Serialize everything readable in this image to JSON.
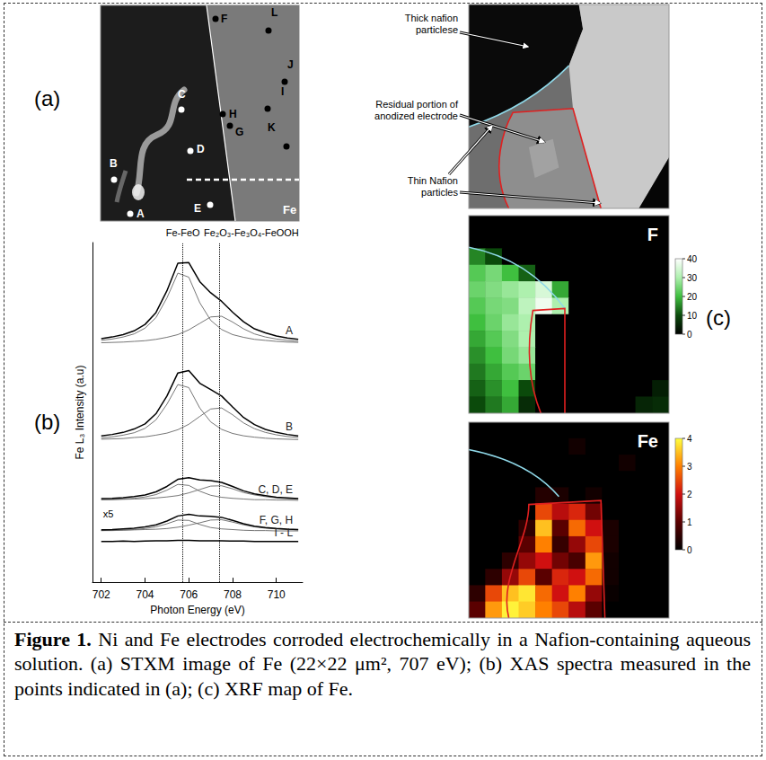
{
  "chart_data": {
    "type": "line",
    "x_label": "Photon Energy (eV)",
    "y_label": "Fe L₃ Intensity (a.u)",
    "x": [
      702,
      702.5,
      703,
      703.5,
      704,
      704.5,
      705,
      705.5,
      706,
      706.5,
      707,
      707.5,
      708,
      708.5,
      709,
      709.5,
      710,
      710.5,
      711
    ],
    "xlim": [
      701.6,
      711.2
    ],
    "xticks": [
      702,
      704,
      706,
      708,
      710
    ],
    "ylim": [
      0,
      10
    ],
    "tick_labels": "x",
    "grid": false,
    "series": [
      {
        "name": "A",
        "color": "#000000",
        "values": [
          7.17,
          7.22,
          7.29,
          7.4,
          7.59,
          7.94,
          8.58,
          9.39,
          9.41,
          8.85,
          8.52,
          8.27,
          7.95,
          7.67,
          7.46,
          7.34,
          7.25,
          7.19,
          7.15
        ],
        "components": [
          [
            7.12,
            7.16,
            7.22,
            7.31,
            7.48,
            7.79,
            8.37,
            9.1,
            8.98,
            8.23,
            7.71,
            7.44,
            7.29,
            7.21,
            7.15,
            7.12,
            7.09,
            7.07,
            7.06
          ],
          [
            7.05,
            7.06,
            7.07,
            7.09,
            7.11,
            7.15,
            7.21,
            7.29,
            7.43,
            7.62,
            7.81,
            7.83,
            7.66,
            7.46,
            7.31,
            7.22,
            7.16,
            7.12,
            7.09
          ]
        ]
      },
      {
        "name": "B",
        "color": "#000000",
        "values": [
          4.31,
          4.35,
          4.41,
          4.51,
          4.66,
          4.96,
          5.48,
          6.16,
          6.23,
          5.86,
          5.67,
          5.48,
          5.16,
          4.85,
          4.64,
          4.5,
          4.41,
          4.35,
          4.31
        ],
        "components": [
          [
            4.25,
            4.28,
            4.33,
            4.4,
            4.53,
            4.78,
            5.24,
            5.82,
            5.73,
            5.13,
            4.72,
            4.5,
            4.38,
            4.31,
            4.27,
            4.24,
            4.22,
            4.21,
            4.2
          ],
          [
            4.21,
            4.22,
            4.23,
            4.26,
            4.28,
            4.33,
            4.39,
            4.49,
            4.65,
            4.88,
            5.1,
            5.13,
            4.93,
            4.69,
            4.52,
            4.41,
            4.34,
            4.29,
            4.26
          ]
        ]
      },
      {
        "name": "C, D, E",
        "color": "#000000",
        "values": [
          2.46,
          2.47,
          2.49,
          2.52,
          2.57,
          2.66,
          2.82,
          3.03,
          3.08,
          3.01,
          2.99,
          2.94,
          2.82,
          2.69,
          2.6,
          2.55,
          2.5,
          2.48,
          2.46
        ],
        "components": [
          [
            2.43,
            2.44,
            2.45,
            2.47,
            2.51,
            2.58,
            2.71,
            2.88,
            2.85,
            2.68,
            2.56,
            2.5,
            2.47,
            2.45,
            2.43,
            2.43,
            2.42,
            2.42,
            2.41
          ],
          [
            2.43,
            2.43,
            2.44,
            2.45,
            2.46,
            2.48,
            2.51,
            2.55,
            2.63,
            2.73,
            2.83,
            2.84,
            2.75,
            2.64,
            2.57,
            2.52,
            2.48,
            2.46,
            2.45
          ]
        ]
      },
      {
        "name": "F, G, H",
        "color": "#000000",
        "note": "x5",
        "values": [
          1.54,
          1.55,
          1.57,
          1.59,
          1.63,
          1.69,
          1.8,
          1.95,
          2.0,
          1.95,
          1.94,
          1.91,
          1.82,
          1.72,
          1.65,
          1.61,
          1.58,
          1.56,
          1.55
        ],
        "components": [
          [
            1.52,
            1.53,
            1.54,
            1.55,
            1.58,
            1.63,
            1.72,
            1.83,
            1.82,
            1.7,
            1.61,
            1.57,
            1.55,
            1.53,
            1.52,
            1.52,
            1.51,
            1.51,
            1.51
          ],
          [
            1.52,
            1.52,
            1.53,
            1.54,
            1.55,
            1.56,
            1.58,
            1.62,
            1.68,
            1.75,
            1.83,
            1.84,
            1.77,
            1.69,
            1.63,
            1.59,
            1.57,
            1.55,
            1.54
          ]
        ]
      },
      {
        "name": "I - L",
        "color": "#000000",
        "values": [
          1.2,
          1.2,
          1.21,
          1.2,
          1.21,
          1.22,
          1.22,
          1.23,
          1.23,
          1.22,
          1.22,
          1.22,
          1.21,
          1.21,
          1.2,
          1.2,
          1.2,
          1.2,
          1.2
        ]
      }
    ],
    "reference_lines": [
      {
        "x": 705.7,
        "label": "Fe-FeO"
      },
      {
        "x": 707.4,
        "label": "Fe₂O₃-Fe₃O₄-FeOOH"
      }
    ]
  },
  "panels": {
    "a": {
      "letter": "(a)",
      "points": [
        "A",
        "B",
        "C",
        "D",
        "E",
        "F",
        "G",
        "H",
        "I",
        "J",
        "K",
        "L"
      ],
      "element_label": "Fe"
    },
    "b": {
      "letter": "(b)"
    },
    "c": {
      "letter": "(c)",
      "annotations": [
        "Thick nafion particlese",
        "Residual portion of anodized electrode",
        "Thin Nafion particles"
      ],
      "maps": [
        {
          "label": "F",
          "colorbar": {
            "range": [
              0,
              40
            ],
            "ticks": [
              0,
              10,
              20,
              30,
              40
            ]
          },
          "cells": [
            [
              0,
              0,
              0,
              0,
              0,
              0,
              0,
              0,
              0,
              0,
              0,
              0
            ],
            [
              0,
              0,
              0,
              0,
              0,
              0,
              0,
              0,
              0,
              0,
              0,
              0
            ],
            [
              15,
              10,
              0,
              0,
              0,
              0,
              0,
              0,
              0,
              0,
              0,
              0
            ],
            [
              22,
              25,
              20,
              12,
              0,
              0,
              0,
              0,
              0,
              0,
              0,
              0
            ],
            [
              24,
              26,
              28,
              30,
              35,
              18,
              0,
              0,
              0,
              0,
              0,
              0
            ],
            [
              22,
              25,
              26,
              32,
              38,
              30,
              0,
              0,
              0,
              0,
              0,
              0
            ],
            [
              20,
              24,
              28,
              30,
              0,
              0,
              0,
              0,
              0,
              0,
              0,
              0
            ],
            [
              18,
              22,
              26,
              30,
              0,
              0,
              0,
              0,
              0,
              0,
              0,
              0
            ],
            [
              16,
              20,
              25,
              28,
              0,
              0,
              0,
              0,
              0,
              0,
              0,
              0
            ],
            [
              14,
              18,
              22,
              24,
              0,
              0,
              0,
              0,
              0,
              0,
              0,
              0
            ],
            [
              12,
              16,
              20,
              10,
              0,
              0,
              0,
              0,
              0,
              0,
              0,
              4
            ],
            [
              10,
              14,
              18,
              6,
              0,
              0,
              0,
              0,
              0,
              0,
              5,
              6
            ]
          ]
        },
        {
          "label": "Fe",
          "colorbar": {
            "range": [
              0,
              4
            ],
            "ticks": [
              0,
              1,
              2,
              3,
              4
            ]
          },
          "cells": [
            [
              0,
              0,
              0,
              0,
              0,
              0,
              0,
              0,
              0,
              0,
              0,
              0
            ],
            [
              0,
              0,
              0,
              0,
              0,
              0,
              0.2,
              0,
              0,
              0,
              0,
              0
            ],
            [
              0,
              0,
              0,
              0,
              0,
              0,
              0,
              0,
              0,
              0.2,
              0,
              0
            ],
            [
              0,
              0,
              0,
              0,
              0,
              0,
              0,
              0,
              0,
              0,
              0,
              0
            ],
            [
              0,
              0,
              0,
              0,
              0.4,
              0.3,
              0,
              0.2,
              0,
              0,
              0,
              0
            ],
            [
              0,
              0,
              0,
              0,
              2.5,
              1.8,
              2.2,
              1.2,
              0,
              0,
              0,
              0
            ],
            [
              0,
              0,
              0,
              0.5,
              3.5,
              1.0,
              2.8,
              2.0,
              0.3,
              0,
              0,
              0
            ],
            [
              0,
              0,
              0,
              1.0,
              3.0,
              0.6,
              1.5,
              2.5,
              0.3,
              0,
              0,
              0
            ],
            [
              0,
              0,
              0.5,
              1.5,
              2.0,
              1.2,
              0.8,
              3.2,
              0.2,
              0,
              0,
              0
            ],
            [
              0,
              0.5,
              1.5,
              2.5,
              1.0,
              2.2,
              2.0,
              2.8,
              0.2,
              0,
              0,
              0
            ],
            [
              0.5,
              2.5,
              3.5,
              3.8,
              2.8,
              2.0,
              3.0,
              1.5,
              0.1,
              0,
              0,
              0
            ],
            [
              1.0,
              3.2,
              3.9,
              3.6,
              3.0,
              2.5,
              1.8,
              1.0,
              0,
              0,
              0,
              0
            ]
          ]
        }
      ]
    }
  },
  "caption": {
    "label": "Figure 1.",
    "text": "Ni and Fe electrodes corroded electrochemically in a Nafion-containing aqueous solution. (a) STXM image of Fe (22×22 μm², 707 eV); (b) XAS spectra measured in the points indicated in (a); (c) XRF map of Fe."
  }
}
